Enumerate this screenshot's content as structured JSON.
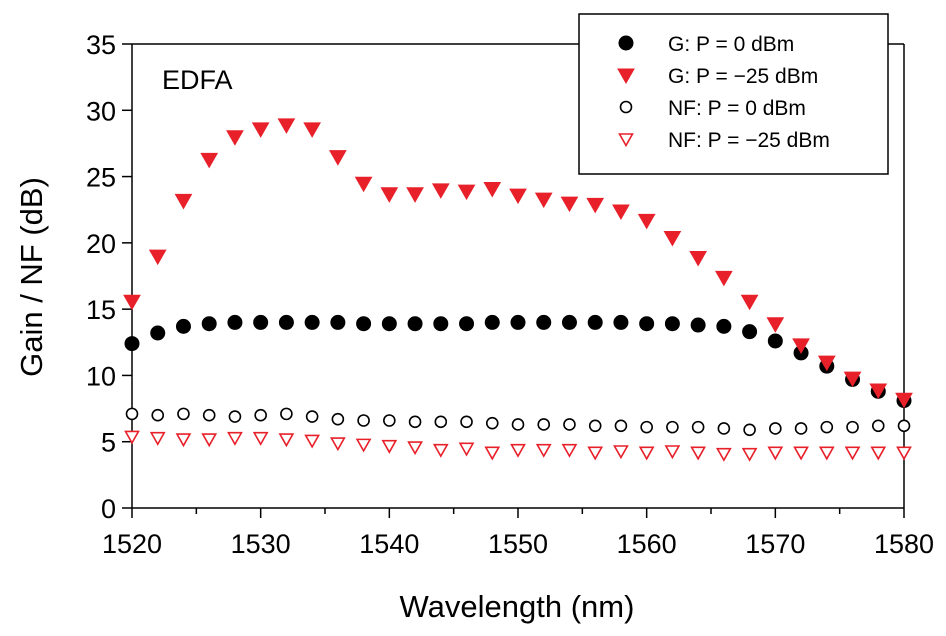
{
  "chart_data": {
    "type": "scatter",
    "xlabel": "Wavelength (nm)",
    "ylabel": "Gain / NF (dB)",
    "annotation": "EDFA",
    "xlim": [
      1520,
      1580
    ],
    "ylim": [
      0,
      35
    ],
    "xticks": [
      1520,
      1530,
      1540,
      1550,
      1560,
      1570,
      1580
    ],
    "yticks": [
      0,
      5,
      10,
      15,
      20,
      25,
      30,
      35
    ],
    "legend_position": "top-right",
    "x": [
      1520,
      1522,
      1524,
      1526,
      1528,
      1530,
      1532,
      1534,
      1536,
      1538,
      1540,
      1542,
      1544,
      1546,
      1548,
      1550,
      1552,
      1554,
      1556,
      1558,
      1560,
      1562,
      1564,
      1566,
      1568,
      1570,
      1572,
      1574,
      1576,
      1578,
      1580
    ],
    "series": [
      {
        "name": "G: P = 0 dBm",
        "marker": "circle-filled",
        "color": "#000000",
        "values": [
          12.4,
          13.2,
          13.7,
          13.9,
          14.0,
          14.0,
          14.0,
          14.0,
          14.0,
          13.9,
          13.9,
          13.9,
          13.9,
          13.9,
          14.0,
          14.0,
          14.0,
          14.0,
          14.0,
          14.0,
          13.9,
          13.9,
          13.8,
          13.7,
          13.3,
          12.6,
          11.7,
          10.7,
          9.7,
          8.8,
          8.1
        ]
      },
      {
        "name": "G: P = −25 dBm",
        "marker": "triangle-down-filled",
        "color": "#e8202a",
        "values": [
          15.6,
          19.0,
          23.2,
          26.3,
          28.0,
          28.6,
          28.9,
          28.6,
          26.5,
          24.5,
          23.7,
          23.7,
          24.0,
          23.9,
          24.1,
          23.6,
          23.3,
          23.0,
          22.9,
          22.4,
          21.7,
          20.4,
          18.9,
          17.4,
          15.6,
          13.9,
          12.3,
          11.0,
          9.8,
          8.9,
          8.2
        ]
      },
      {
        "name": "NF: P = 0 dBm",
        "marker": "circle-open",
        "color": "#000000",
        "values": [
          7.1,
          7.0,
          7.1,
          7.0,
          6.9,
          7.0,
          7.1,
          6.9,
          6.7,
          6.6,
          6.6,
          6.5,
          6.5,
          6.5,
          6.4,
          6.3,
          6.3,
          6.3,
          6.2,
          6.2,
          6.1,
          6.1,
          6.1,
          6.0,
          5.9,
          6.0,
          6.0,
          6.1,
          6.1,
          6.2,
          6.2
        ]
      },
      {
        "name": "NF: P = −25 dBm",
        "marker": "triangle-down-open",
        "color": "#e8202a",
        "values": [
          5.4,
          5.3,
          5.2,
          5.2,
          5.3,
          5.3,
          5.2,
          5.1,
          4.9,
          4.8,
          4.7,
          4.6,
          4.4,
          4.5,
          4.2,
          4.4,
          4.4,
          4.4,
          4.2,
          4.3,
          4.2,
          4.3,
          4.2,
          4.1,
          4.1,
          4.2,
          4.2,
          4.2,
          4.2,
          4.2,
          4.2
        ]
      }
    ]
  }
}
